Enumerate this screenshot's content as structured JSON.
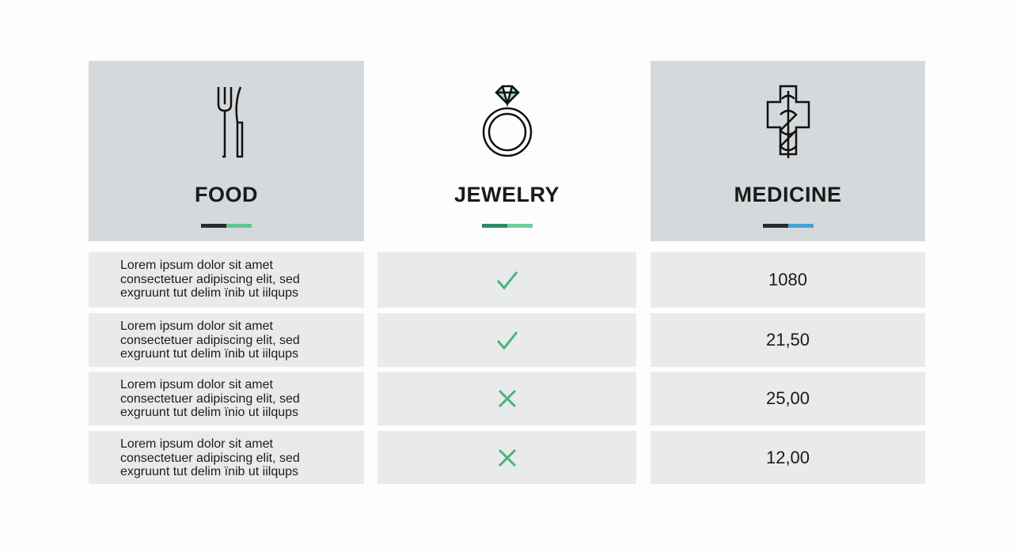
{
  "columns": [
    {
      "title": "FOOD"
    },
    {
      "title": "JEWELRY"
    },
    {
      "title": "MEDICINE"
    }
  ],
  "rows": [
    {
      "text": [
        "Lorem ipsum dolor sit amet",
        "consectetuer adipiscing elit, sed",
        "exgruunt tut delim  ïnib ut iilqups"
      ],
      "available": true,
      "price": "1080"
    },
    {
      "text": [
        "Lorem ipsum dolor sit amet",
        "consectetuer adipiscing elit, sed",
        "exgruunt tut delim  ïnib ut iilqups"
      ],
      "available": true,
      "price": "21,50"
    },
    {
      "text": [
        "Lorem ipsum dolor sit amet",
        "consectetuer adipiscing elit, sed",
        "exgruunt tut delim  ïnio ut iilqups"
      ],
      "available": false,
      "price": "25,00"
    },
    {
      "text": [
        "Lorem ipsum dolor sit amet",
        "consectetuer adipiscing elit, sed",
        "exgruunt tut delim  ïnib ut iilqups"
      ],
      "available": false,
      "price": "12,00"
    }
  ]
}
